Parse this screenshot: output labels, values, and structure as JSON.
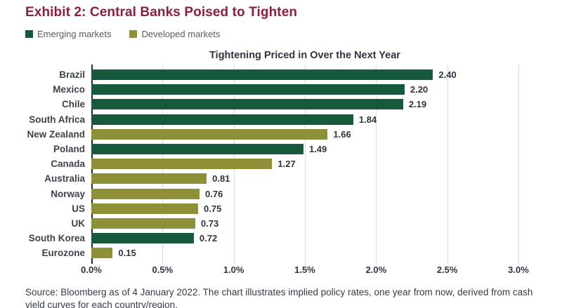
{
  "page_title": "Exhibit 2: Central Banks Poised to Tighten",
  "legend": [
    {
      "label": "Emerging markets",
      "group": "emerging"
    },
    {
      "label": "Developed markets",
      "group": "developed"
    }
  ],
  "chart_data": {
    "type": "bar",
    "orientation": "horizontal",
    "title": "Tightening Priced in Over the Next Year",
    "categories": [
      "Brazil",
      "Mexico",
      "Chile",
      "South Africa",
      "New Zealand",
      "Poland",
      "Canada",
      "Australia",
      "Norway",
      "US",
      "UK",
      "South Korea",
      "Eurozone"
    ],
    "values": [
      2.4,
      2.2,
      2.19,
      1.84,
      1.66,
      1.49,
      1.27,
      0.81,
      0.76,
      0.75,
      0.73,
      0.72,
      0.15
    ],
    "groups": [
      "emerging",
      "emerging",
      "emerging",
      "emerging",
      "developed",
      "emerging",
      "developed",
      "developed",
      "developed",
      "developed",
      "developed",
      "emerging",
      "developed"
    ],
    "xlim": [
      0,
      3.0
    ],
    "x_ticks": [
      "0.0%",
      "0.5%",
      "1.0%",
      "1.5%",
      "2.0%",
      "2.5%",
      "3.0%"
    ],
    "grid": true,
    "value_label_format": "2dp",
    "legend_position": "top-left"
  },
  "source_note": "Source: Bloomberg as of 4 January 2022. The chart illustrates implied policy rates, one year from now, derived from cash yield curves for each country/region.",
  "colors": {
    "emerging": "#17593b",
    "developed": "#8e9038",
    "title": "#8c1d40",
    "gridline": "#d9d9d9",
    "axis": "#26282e"
  }
}
